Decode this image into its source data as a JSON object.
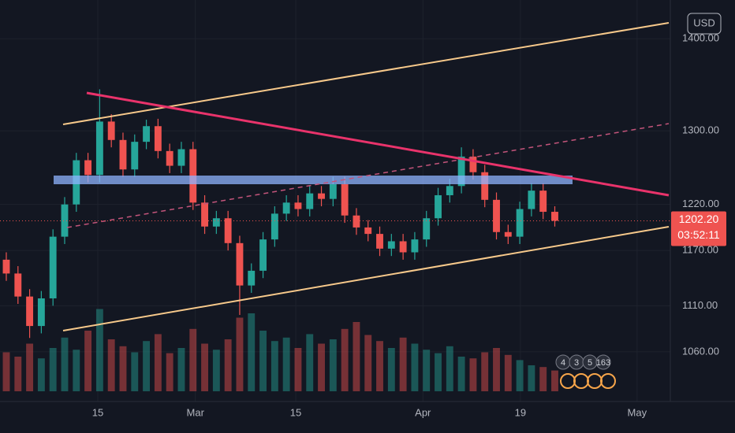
{
  "chart_data": {
    "type": "candlestick",
    "currency": "USD",
    "open": [
      1160,
      1145,
      1120,
      1088,
      1118,
      1185,
      1220,
      1268,
      1252,
      1310,
      1290,
      1258,
      1288,
      1305,
      1278,
      1262,
      1280,
      1222,
      1196,
      1205,
      1178,
      1132,
      1148,
      1182,
      1210,
      1222,
      1215,
      1232,
      1226,
      1242,
      1208,
      1195,
      1188,
      1172,
      1180,
      1168,
      1182,
      1205,
      1230,
      1240,
      1272,
      1255,
      1225,
      1190,
      1185,
      1215,
      1235,
      1212
    ],
    "high": [
      1168,
      1153,
      1128,
      1126,
      1193,
      1228,
      1276,
      1276,
      1345,
      1318,
      1298,
      1296,
      1312,
      1313,
      1286,
      1288,
      1288,
      1230,
      1213,
      1213,
      1186,
      1156,
      1190,
      1218,
      1230,
      1230,
      1240,
      1240,
      1250,
      1250,
      1216,
      1203,
      1196,
      1188,
      1188,
      1190,
      1213,
      1238,
      1248,
      1282,
      1280,
      1263,
      1233,
      1198,
      1223,
      1243,
      1243,
      1218
    ],
    "low": [
      1137,
      1112,
      1075,
      1080,
      1110,
      1177,
      1212,
      1244,
      1244,
      1282,
      1250,
      1250,
      1280,
      1270,
      1254,
      1254,
      1214,
      1188,
      1188,
      1170,
      1100,
      1124,
      1140,
      1174,
      1202,
      1207,
      1207,
      1218,
      1218,
      1200,
      1187,
      1180,
      1164,
      1164,
      1160,
      1160,
      1174,
      1197,
      1222,
      1232,
      1247,
      1217,
      1182,
      1177,
      1177,
      1207,
      1204,
      1196
    ],
    "close": [
      1145,
      1120,
      1088,
      1118,
      1185,
      1220,
      1268,
      1252,
      1310,
      1290,
      1258,
      1288,
      1305,
      1278,
      1262,
      1280,
      1222,
      1196,
      1205,
      1178,
      1132,
      1148,
      1182,
      1210,
      1222,
      1215,
      1232,
      1226,
      1242,
      1208,
      1195,
      1188,
      1172,
      1180,
      1168,
      1182,
      1205,
      1230,
      1240,
      1272,
      1255,
      1225,
      1190,
      1185,
      1215,
      1235,
      1212,
      1202.2
    ],
    "volume": [
      45,
      40,
      55,
      38,
      50,
      62,
      48,
      70,
      95,
      60,
      52,
      45,
      58,
      66,
      44,
      50,
      72,
      55,
      48,
      60,
      85,
      90,
      70,
      58,
      62,
      50,
      66,
      55,
      60,
      72,
      80,
      65,
      58,
      50,
      62,
      55,
      48,
      44,
      52,
      40,
      38,
      45,
      50,
      42,
      36,
      30,
      28,
      24
    ],
    "vlim": [
      0,
      100
    ],
    "up_color": "#26a69a",
    "down_color": "#ef5350",
    "ylim": [
      1006,
      1442
    ],
    "yticks": [
      {
        "value": 1060,
        "label": "1060.00"
      },
      {
        "value": 1110,
        "label": "1110.00"
      },
      {
        "value": 1170,
        "label": "1170.00"
      },
      {
        "value": 1220,
        "label": "1220.00"
      },
      {
        "value": 1300,
        "label": "1300.00"
      },
      {
        "value": 1400,
        "label": "1400.00"
      }
    ],
    "xlim": [
      -0.54,
      56.9
    ],
    "xticks": [
      {
        "value": 7.84,
        "label": "15"
      },
      {
        "value": 16.2,
        "label": "Mar"
      },
      {
        "value": 24.8,
        "label": "15"
      },
      {
        "value": 35.7,
        "label": "Apr"
      },
      {
        "value": 44.05,
        "label": "19"
      },
      {
        "value": 54.05,
        "label": "May"
      }
    ],
    "last_price": {
      "value": 1202.2,
      "label": "1202.20"
    },
    "countdown": "03:52:11",
    "events": [
      "4",
      "3",
      "5",
      "163"
    ]
  }
}
